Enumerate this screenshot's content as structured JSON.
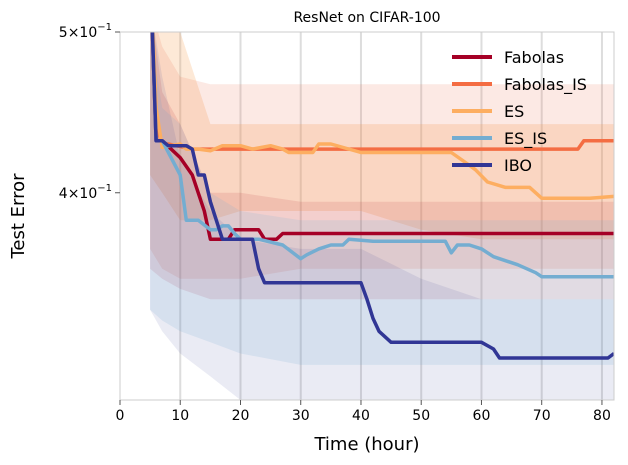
{
  "chart_data": {
    "type": "line",
    "title": "ResNet on CIFAR-100",
    "xlabel": "Time (hour)",
    "ylabel": "Test Error",
    "xlim": [
      0,
      82
    ],
    "ylim": [
      0.3,
      0.5
    ],
    "y_scale": "log",
    "grid": "x-only",
    "legend_position": "top-right",
    "x_ticks": [
      0,
      10,
      20,
      30,
      40,
      50,
      60,
      70,
      80
    ],
    "x_tick_labels": [
      "0",
      "10",
      "20",
      "30",
      "40",
      "50",
      "60",
      "70",
      "80"
    ],
    "y_ticks": [
      0.5,
      0.4
    ],
    "y_tick_labels": [
      {
        "base": "5×10",
        "exp": "−1"
      },
      {
        "base": "4×10",
        "exp": "−1"
      }
    ],
    "bands": [
      {
        "color": "#f6a75e",
        "opacity": 0.25,
        "x": [
          5,
          7,
          10,
          15,
          20,
          30,
          40,
          50,
          60,
          70,
          82
        ],
        "upper": [
          0.52,
          0.5,
          0.5,
          0.44,
          0.44,
          0.44,
          0.44,
          0.44,
          0.44,
          0.44,
          0.44
        ],
        "lower": [
          0.41,
          0.4,
          0.385,
          0.385,
          0.39,
          0.39,
          0.39,
          0.38,
          0.375,
          0.375,
          0.375
        ]
      },
      {
        "color": "#ee6c4d",
        "opacity": 0.15,
        "x": [
          5,
          7,
          10,
          15,
          20,
          30,
          40,
          50,
          60,
          70,
          82
        ],
        "upper": [
          0.52,
          0.49,
          0.47,
          0.465,
          0.465,
          0.465,
          0.465,
          0.465,
          0.465,
          0.465,
          0.465
        ],
        "lower": [
          0.37,
          0.36,
          0.355,
          0.355,
          0.355,
          0.36,
          0.36,
          0.36,
          0.36,
          0.36,
          0.36
        ]
      },
      {
        "color": "#b2182b",
        "opacity": 0.12,
        "x": [
          5,
          7,
          10,
          15,
          20,
          30,
          40,
          50,
          60,
          70,
          82
        ],
        "upper": [
          0.52,
          0.46,
          0.44,
          0.4,
          0.4,
          0.395,
          0.395,
          0.395,
          0.395,
          0.395,
          0.395
        ],
        "lower": [
          0.36,
          0.355,
          0.35,
          0.345,
          0.345,
          0.345,
          0.345,
          0.345,
          0.345,
          0.345,
          0.345
        ]
      },
      {
        "color": "#6baed6",
        "opacity": 0.15,
        "x": [
          5,
          7,
          10,
          15,
          20,
          30,
          40,
          50,
          60,
          70,
          82
        ],
        "upper": [
          0.5,
          0.45,
          0.44,
          0.4,
          0.39,
          0.385,
          0.385,
          0.385,
          0.385,
          0.385,
          0.385
        ],
        "lower": [
          0.34,
          0.335,
          0.33,
          0.325,
          0.32,
          0.315,
          0.315,
          0.315,
          0.315,
          0.315,
          0.315
        ]
      },
      {
        "color": "#313695",
        "opacity": 0.1,
        "x": [
          5,
          7,
          10,
          15,
          20,
          30,
          40,
          50,
          60,
          70,
          82
        ],
        "upper": [
          0.52,
          0.47,
          0.42,
          0.39,
          0.375,
          0.37,
          0.37,
          0.355,
          0.345,
          0.345,
          0.345
        ],
        "lower": [
          0.34,
          0.33,
          0.32,
          0.31,
          0.3,
          0.3,
          0.3,
          0.3,
          0.3,
          0.3,
          0.3
        ]
      }
    ],
    "series": [
      {
        "name": "Fabolas",
        "color": "#a50026",
        "x": [
          5,
          6,
          7,
          10,
          12,
          14,
          15,
          18,
          19,
          23,
          24,
          26,
          27,
          82
        ],
        "y": [
          0.55,
          0.43,
          0.43,
          0.42,
          0.41,
          0.39,
          0.375,
          0.375,
          0.38,
          0.38,
          0.375,
          0.375,
          0.378,
          0.378
        ]
      },
      {
        "name": "Fabolas_IS",
        "color": "#f46d43",
        "x": [
          5,
          6,
          7,
          8,
          12,
          13,
          15,
          76,
          77,
          82
        ],
        "y": [
          0.55,
          0.44,
          0.428,
          0.428,
          0.425,
          0.425,
          0.425,
          0.425,
          0.43,
          0.43
        ]
      },
      {
        "name": "ES",
        "color": "#fdae61",
        "x": [
          5,
          6,
          7,
          10,
          11,
          13,
          15,
          17,
          20,
          22,
          25,
          27,
          28,
          32,
          33,
          35,
          40,
          42,
          55,
          57,
          59,
          61,
          64,
          68,
          70,
          78,
          82
        ],
        "y": [
          0.55,
          0.45,
          0.426,
          0.428,
          0.425,
          0.425,
          0.424,
          0.427,
          0.427,
          0.425,
          0.427,
          0.425,
          0.423,
          0.423,
          0.428,
          0.428,
          0.423,
          0.423,
          0.423,
          0.418,
          0.413,
          0.406,
          0.403,
          0.403,
          0.397,
          0.397,
          0.398
        ]
      },
      {
        "name": "ES_IS",
        "color": "#74add1",
        "x": [
          5,
          6,
          7,
          10,
          11,
          13,
          15,
          16,
          17,
          18,
          19,
          20,
          23,
          27,
          30,
          31,
          33,
          35,
          37,
          38,
          42,
          54,
          55,
          56,
          58,
          60,
          62,
          66,
          69,
          70,
          82
        ],
        "y": [
          0.55,
          0.43,
          0.43,
          0.41,
          0.385,
          0.385,
          0.38,
          0.38,
          0.382,
          0.382,
          0.378,
          0.375,
          0.375,
          0.372,
          0.365,
          0.367,
          0.37,
          0.372,
          0.372,
          0.375,
          0.374,
          0.374,
          0.368,
          0.372,
          0.372,
          0.37,
          0.366,
          0.362,
          0.358,
          0.356,
          0.356
        ]
      },
      {
        "name": "IBO",
        "color": "#313695",
        "x": [
          5,
          6,
          7,
          8,
          11,
          12,
          13,
          14,
          15,
          17,
          22,
          23,
          24,
          40,
          41,
          42,
          43,
          45,
          60,
          62,
          63,
          81,
          82
        ],
        "y": [
          0.55,
          0.43,
          0.43,
          0.427,
          0.427,
          0.425,
          0.41,
          0.41,
          0.395,
          0.375,
          0.375,
          0.36,
          0.353,
          0.353,
          0.345,
          0.336,
          0.33,
          0.325,
          0.325,
          0.322,
          0.318,
          0.318,
          0.32
        ]
      }
    ]
  }
}
